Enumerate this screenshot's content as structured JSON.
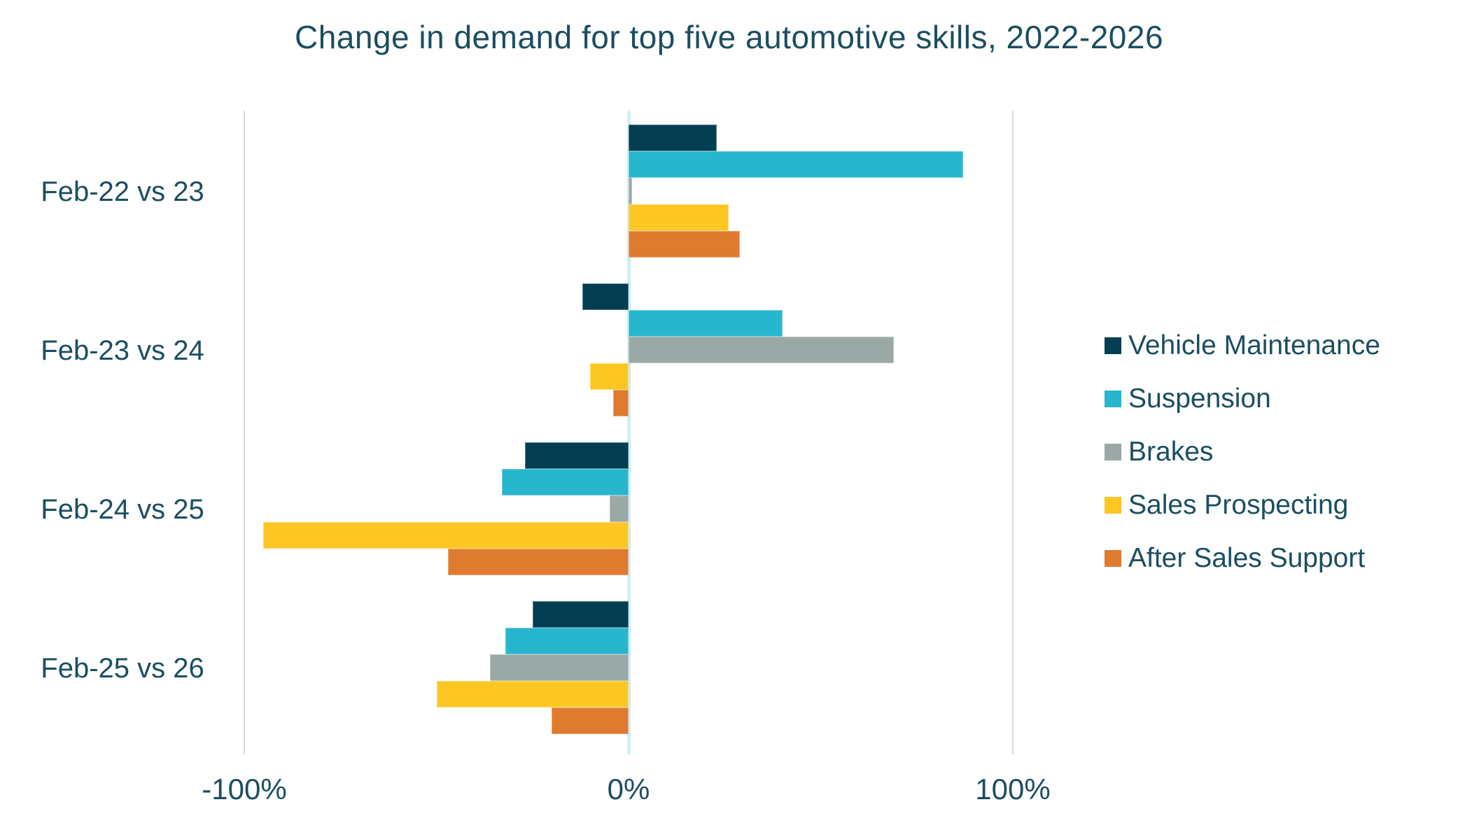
{
  "title": "Change in demand for top five automotive skills, 2022-2026",
  "colors": {
    "text": "#1b4e61",
    "gridline": "#d9d9d9",
    "zero_axis": "#cdeef8",
    "background": "#ffffff"
  },
  "chart_data": {
    "type": "bar",
    "orientation": "horizontal",
    "title": "Change in demand for top five automotive skills, 2022-2026",
    "categories": [
      "Feb-22 vs 23",
      "Feb-23 vs 24",
      "Feb-24 vs 25",
      "Feb-25 vs 26"
    ],
    "series": [
      {
        "name": "Vehicle Maintenance",
        "color": "#033e52",
        "values": [
          23,
          -12,
          -27,
          -25
        ]
      },
      {
        "name": "Suspension",
        "color": "#28b6ce",
        "values": [
          87,
          40,
          -33,
          -32
        ]
      },
      {
        "name": "Brakes",
        "color": "#9aa8a6",
        "values": [
          1,
          69,
          -5,
          -36
        ]
      },
      {
        "name": "Sales Prospecting",
        "color": "#fdc723",
        "values": [
          26,
          -10,
          -95,
          -50
        ]
      },
      {
        "name": "After Sales Support",
        "color": "#df7b2e",
        "values": [
          29,
          -4,
          -47,
          -20
        ]
      }
    ],
    "xlabel": "",
    "ylabel": "",
    "x_tick_labels": [
      "-100%",
      "0%",
      "100%"
    ],
    "x_tick_values": [
      -100,
      0,
      100
    ],
    "xlim": [
      -100,
      100
    ],
    "grid": "vertical-at-ticks",
    "legend_position": "right",
    "value_unit": "percent"
  }
}
